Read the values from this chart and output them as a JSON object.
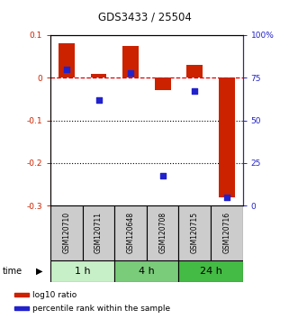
{
  "title": "GDS3433 / 25504",
  "samples": [
    "GSM120710",
    "GSM120711",
    "GSM120648",
    "GSM120708",
    "GSM120715",
    "GSM120716"
  ],
  "time_groups": [
    {
      "label": "1 h",
      "color": "#c8f0c8",
      "indices": [
        0,
        1
      ]
    },
    {
      "label": "4 h",
      "color": "#7acc7a",
      "indices": [
        2,
        3
      ]
    },
    {
      "label": "24 h",
      "color": "#44bb44",
      "indices": [
        4,
        5
      ]
    }
  ],
  "log10_ratio": [
    0.08,
    0.01,
    0.075,
    -0.03,
    0.03,
    -0.28
  ],
  "percentile_rank_pct": [
    80,
    62,
    78,
    17.5,
    67,
    5
  ],
  "ylim_left": [
    -0.3,
    0.1
  ],
  "ylim_right": [
    0,
    100
  ],
  "bar_color": "#cc2200",
  "dot_color": "#2222cc",
  "ref_line_color": "#dd0000",
  "left_tick_color": "#cc2200",
  "right_tick_color": "#2222cc",
  "sample_box_color": "#cccccc",
  "legend_items": [
    {
      "label": "log10 ratio",
      "color": "#cc2200"
    },
    {
      "label": "percentile rank within the sample",
      "color": "#2222cc"
    }
  ],
  "bar_width": 0.5
}
